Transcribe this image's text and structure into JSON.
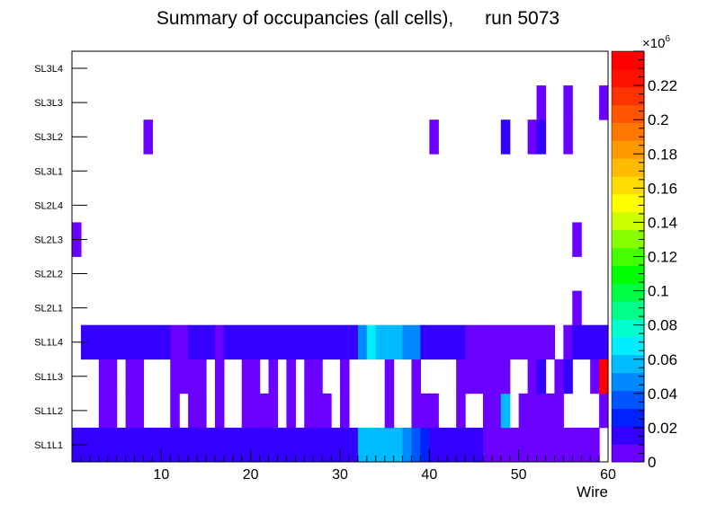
{
  "chart_data": {
    "type": "heatmap",
    "title": "Summary of occupancies (all cells),      run 5073",
    "xlabel": "Wire",
    "ylabel": "",
    "x_range": [
      0,
      60
    ],
    "x_ticks": [
      10,
      20,
      30,
      40,
      50,
      60
    ],
    "y_categories": [
      "SL1L1",
      "SL1L2",
      "SL1L3",
      "SL1L4",
      "SL2L1",
      "SL2L2",
      "SL2L3",
      "SL2L4",
      "SL3L1",
      "SL3L2",
      "SL3L3",
      "SL3L4"
    ],
    "z_range": [
      0,
      0.24
    ],
    "z_ticks": [
      "0",
      "0.02",
      "0.04",
      "0.06",
      "0.08",
      "0.1",
      "0.12",
      "0.14",
      "0.16",
      "0.18",
      "0.2",
      "0.22"
    ],
    "z_ticks_values": [
      0,
      0.02,
      0.04,
      0.06,
      0.08,
      0.1,
      0.12,
      0.14,
      0.16,
      0.18,
      0.2,
      0.22
    ],
    "z_exponent": "×10",
    "z_exponent_power": "6",
    "palette": [
      "#6a00ff",
      "#3300ff",
      "#0022ff",
      "#0055ff",
      "#0088ff",
      "#00bbff",
      "#00eeff",
      "#00ffcc",
      "#00ff88",
      "#00ff44",
      "#00ff00",
      "#44ff00",
      "#88ff00",
      "#ccff00",
      "#ffff00",
      "#ffdd00",
      "#ffbb00",
      "#ff9900",
      "#ff7700",
      "#ff5500",
      "#ff3300",
      "#ff1100",
      "#ff0000"
    ],
    "cells": [
      [
        1,
        1,
        0.02
      ],
      [
        2,
        1,
        0.02
      ],
      [
        3,
        1,
        0.02
      ],
      [
        4,
        1,
        0.02
      ],
      [
        5,
        1,
        0.02
      ],
      [
        6,
        1,
        0.02
      ],
      [
        7,
        1,
        0.02
      ],
      [
        8,
        1,
        0.02
      ],
      [
        9,
        1,
        0.02
      ],
      [
        10,
        1,
        0.02
      ],
      [
        11,
        1,
        0.02
      ],
      [
        12,
        1,
        0.02
      ],
      [
        13,
        1,
        0.02
      ],
      [
        14,
        1,
        0.02
      ],
      [
        15,
        1,
        0.02
      ],
      [
        16,
        1,
        0.02
      ],
      [
        17,
        1,
        0.02
      ],
      [
        18,
        1,
        0.02
      ],
      [
        19,
        1,
        0.02
      ],
      [
        20,
        1,
        0.02
      ],
      [
        21,
        1,
        0.02
      ],
      [
        22,
        1,
        0.02
      ],
      [
        23,
        1,
        0.02
      ],
      [
        24,
        1,
        0.02
      ],
      [
        25,
        1,
        0.02
      ],
      [
        26,
        1,
        0.02
      ],
      [
        27,
        1,
        0.02
      ],
      [
        28,
        1,
        0.02
      ],
      [
        29,
        1,
        0.02
      ],
      [
        30,
        1,
        0.02
      ],
      [
        31,
        1,
        0.02
      ],
      [
        32,
        1,
        0.02
      ],
      [
        33,
        1,
        0.055
      ],
      [
        34,
        1,
        0.055
      ],
      [
        35,
        1,
        0.055
      ],
      [
        36,
        1,
        0.055
      ],
      [
        37,
        1,
        0.055
      ],
      [
        38,
        1,
        0.045
      ],
      [
        39,
        1,
        0.035
      ],
      [
        40,
        1,
        0.025
      ],
      [
        41,
        1,
        0.02
      ],
      [
        42,
        1,
        0.02
      ],
      [
        43,
        1,
        0.02
      ],
      [
        44,
        1,
        0.02
      ],
      [
        45,
        1,
        0.02
      ],
      [
        46,
        1,
        0.02
      ],
      [
        47,
        1,
        0.01
      ],
      [
        48,
        1,
        0.01
      ],
      [
        49,
        1,
        0.01
      ],
      [
        50,
        1,
        0.01
      ],
      [
        51,
        1,
        0.01
      ],
      [
        52,
        1,
        0.01
      ],
      [
        53,
        1,
        0.01
      ],
      [
        54,
        1,
        0.01
      ],
      [
        55,
        1,
        0.01
      ],
      [
        56,
        1,
        0.01
      ],
      [
        57,
        1,
        0.01
      ],
      [
        58,
        1,
        0.01
      ],
      [
        59,
        1,
        0.01
      ],
      [
        4,
        2,
        0.01
      ],
      [
        5,
        2,
        0.01
      ],
      [
        7,
        2,
        0.01
      ],
      [
        8,
        2,
        0.01
      ],
      [
        12,
        2,
        0.01
      ],
      [
        14,
        2,
        0.01
      ],
      [
        15,
        2,
        0.01
      ],
      [
        17,
        2,
        0.01
      ],
      [
        20,
        2,
        0.01
      ],
      [
        21,
        2,
        0.01
      ],
      [
        22,
        2,
        0.01
      ],
      [
        23,
        2,
        0.01
      ],
      [
        25,
        2,
        0.01
      ],
      [
        27,
        2,
        0.01
      ],
      [
        28,
        2,
        0.01
      ],
      [
        29,
        2,
        0.01
      ],
      [
        31,
        2,
        0.01
      ],
      [
        36,
        2,
        0.01
      ],
      [
        39,
        2,
        0.01
      ],
      [
        40,
        2,
        0.01
      ],
      [
        41,
        2,
        0.01
      ],
      [
        44,
        2,
        0.01
      ],
      [
        47,
        2,
        0.01
      ],
      [
        48,
        2,
        0.01
      ],
      [
        49,
        2,
        0.055
      ],
      [
        51,
        2,
        0.01
      ],
      [
        52,
        2,
        0.01
      ],
      [
        53,
        2,
        0.01
      ],
      [
        54,
        2,
        0.01
      ],
      [
        55,
        2,
        0.01
      ],
      [
        60,
        2,
        0.01
      ],
      [
        4,
        3,
        0.01
      ],
      [
        5,
        3,
        0.01
      ],
      [
        7,
        3,
        0.01
      ],
      [
        8,
        3,
        0.01
      ],
      [
        12,
        3,
        0.01
      ],
      [
        13,
        3,
        0.01
      ],
      [
        14,
        3,
        0.01
      ],
      [
        15,
        3,
        0.01
      ],
      [
        17,
        3,
        0.01
      ],
      [
        20,
        3,
        0.01
      ],
      [
        21,
        3,
        0.01
      ],
      [
        23,
        3,
        0.01
      ],
      [
        25,
        3,
        0.01
      ],
      [
        27,
        3,
        0.01
      ],
      [
        28,
        3,
        0.01
      ],
      [
        31,
        3,
        0.01
      ],
      [
        36,
        3,
        0.01
      ],
      [
        39,
        3,
        0.01
      ],
      [
        44,
        3,
        0.01
      ],
      [
        45,
        3,
        0.01
      ],
      [
        46,
        3,
        0.01
      ],
      [
        47,
        3,
        0.01
      ],
      [
        48,
        3,
        0.01
      ],
      [
        49,
        3,
        0.01
      ],
      [
        52,
        3,
        0.01
      ],
      [
        53,
        3,
        0.02
      ],
      [
        55,
        3,
        0.01
      ],
      [
        56,
        3,
        0.02
      ],
      [
        59,
        3,
        0.01
      ],
      [
        60,
        3,
        0.23
      ],
      [
        2,
        4,
        0.02
      ],
      [
        3,
        4,
        0.02
      ],
      [
        4,
        4,
        0.02
      ],
      [
        5,
        4,
        0.02
      ],
      [
        6,
        4,
        0.02
      ],
      [
        7,
        4,
        0.02
      ],
      [
        8,
        4,
        0.02
      ],
      [
        9,
        4,
        0.02
      ],
      [
        10,
        4,
        0.02
      ],
      [
        11,
        4,
        0.02
      ],
      [
        12,
        4,
        0.01
      ],
      [
        13,
        4,
        0.01
      ],
      [
        14,
        4,
        0.02
      ],
      [
        15,
        4,
        0.02
      ],
      [
        16,
        4,
        0.02
      ],
      [
        17,
        4,
        0.01
      ],
      [
        18,
        4,
        0.02
      ],
      [
        19,
        4,
        0.02
      ],
      [
        20,
        4,
        0.02
      ],
      [
        21,
        4,
        0.02
      ],
      [
        22,
        4,
        0.02
      ],
      [
        23,
        4,
        0.02
      ],
      [
        24,
        4,
        0.02
      ],
      [
        25,
        4,
        0.02
      ],
      [
        26,
        4,
        0.02
      ],
      [
        27,
        4,
        0.02
      ],
      [
        28,
        4,
        0.02
      ],
      [
        29,
        4,
        0.02
      ],
      [
        30,
        4,
        0.02
      ],
      [
        31,
        4,
        0.02
      ],
      [
        32,
        4,
        0.02
      ],
      [
        33,
        4,
        0.045
      ],
      [
        34,
        4,
        0.07
      ],
      [
        35,
        4,
        0.055
      ],
      [
        36,
        4,
        0.055
      ],
      [
        37,
        4,
        0.055
      ],
      [
        38,
        4,
        0.045
      ],
      [
        39,
        4,
        0.045
      ],
      [
        40,
        4,
        0.02
      ],
      [
        41,
        4,
        0.02
      ],
      [
        42,
        4,
        0.02
      ],
      [
        43,
        4,
        0.02
      ],
      [
        44,
        4,
        0.02
      ],
      [
        45,
        4,
        0.01
      ],
      [
        46,
        4,
        0.01
      ],
      [
        47,
        4,
        0.01
      ],
      [
        48,
        4,
        0.01
      ],
      [
        49,
        4,
        0.01
      ],
      [
        50,
        4,
        0.01
      ],
      [
        51,
        4,
        0.01
      ],
      [
        52,
        4,
        0.01
      ],
      [
        53,
        4,
        0.01
      ],
      [
        54,
        4,
        0.01
      ],
      [
        56,
        4,
        0.01
      ],
      [
        57,
        4,
        0.02
      ],
      [
        58,
        4,
        0.02
      ],
      [
        59,
        4,
        0.02
      ],
      [
        60,
        4,
        0.02
      ],
      [
        57,
        5,
        0.01
      ],
      [
        1,
        7,
        0.01
      ],
      [
        57,
        7,
        0.01
      ],
      [
        9,
        10,
        0.01
      ],
      [
        41,
        10,
        0.01
      ],
      [
        49,
        10,
        0.015
      ],
      [
        52,
        10,
        0.01
      ],
      [
        53,
        10,
        0.015
      ],
      [
        56,
        10,
        0.01
      ],
      [
        53,
        11,
        0.01
      ],
      [
        56,
        11,
        0.01
      ],
      [
        60,
        11,
        0.01
      ]
    ]
  }
}
